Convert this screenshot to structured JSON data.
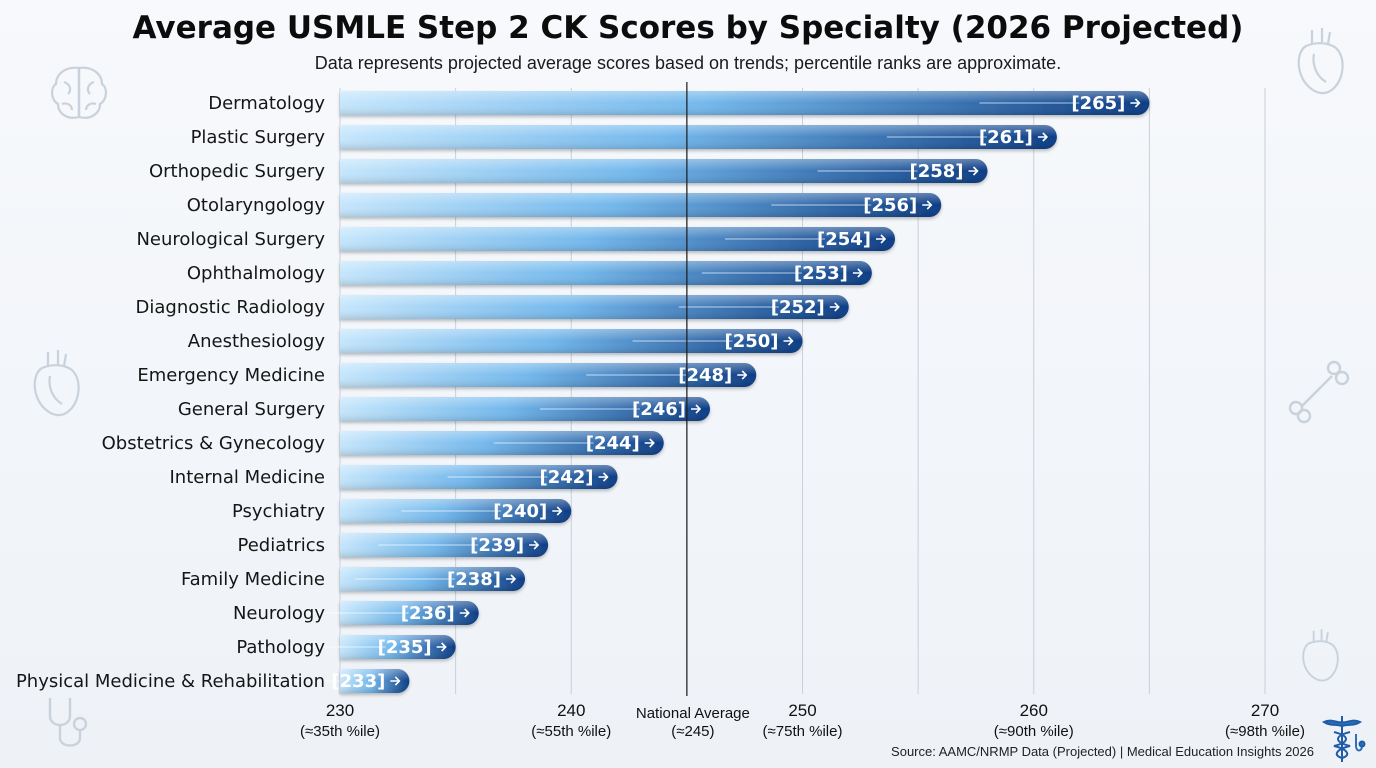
{
  "chart_data": {
    "type": "bar",
    "orientation": "horizontal",
    "title": "Average USMLE Step 2 CK Scores by Specialty (2026 Projected)",
    "subtitle": "Data represents projected average scores based on trends; percentile ranks are approximate.",
    "categories": [
      "Dermatology",
      "Plastic Surgery",
      "Orthopedic Surgery",
      "Otolaryngology",
      "Neurological Surgery",
      "Ophthalmology",
      "Diagnostic Radiology",
      "Anesthesiology",
      "Emergency Medicine",
      "General Surgery",
      "Obstetrics & Gynecology",
      "Internal Medicine",
      "Psychiatry",
      "Pediatrics",
      "Family Medicine",
      "Neurology",
      "Pathology",
      "Physical Medicine & Rehabilitation"
    ],
    "values": [
      265,
      261,
      258,
      256,
      254,
      253,
      252,
      250,
      248,
      246,
      244,
      242,
      240,
      239,
      238,
      236,
      235,
      233
    ],
    "value_labels": [
      "[265]",
      "[261]",
      "[258]",
      "[256]",
      "[254]",
      "[253]",
      "[252]",
      "[250]",
      "[248]",
      "[246]",
      "[244]",
      "[242]",
      "[240]",
      "[239]",
      "[238]",
      "[236]",
      "[235]",
      "[233]"
    ],
    "xlim": [
      230,
      270
    ],
    "x_ticks": [
      {
        "value": 230,
        "label": "230",
        "sub": "(≈35th %ile)"
      },
      {
        "value": 240,
        "label": "240",
        "sub": "(≈55th %ile)"
      },
      {
        "value": 250,
        "label": "250",
        "sub": "(≈75th %ile)"
      },
      {
        "value": 260,
        "label": "260",
        "sub": "(≈90th %ile)"
      },
      {
        "value": 270,
        "label": "270",
        "sub": "(≈98th %ile)"
      }
    ],
    "reference_line": {
      "value": 245,
      "label": "National Average",
      "sub": "(≈245)"
    },
    "grid": true,
    "colors": {
      "bar_start": "#bfe3fb",
      "bar_mid": "#6fb4ea",
      "bar_end": "#0d3f86",
      "reference": "#1a1a1a",
      "grid": "#c9d0d8"
    }
  },
  "source": "Source: AAMC/NRMP Data (Projected) | Medical Education Insights 2026",
  "decorations": [
    "brain-icon",
    "heart-icon",
    "anatomical-heart-icon",
    "bone-icon",
    "stethoscope-icon",
    "caduceus-icon"
  ]
}
